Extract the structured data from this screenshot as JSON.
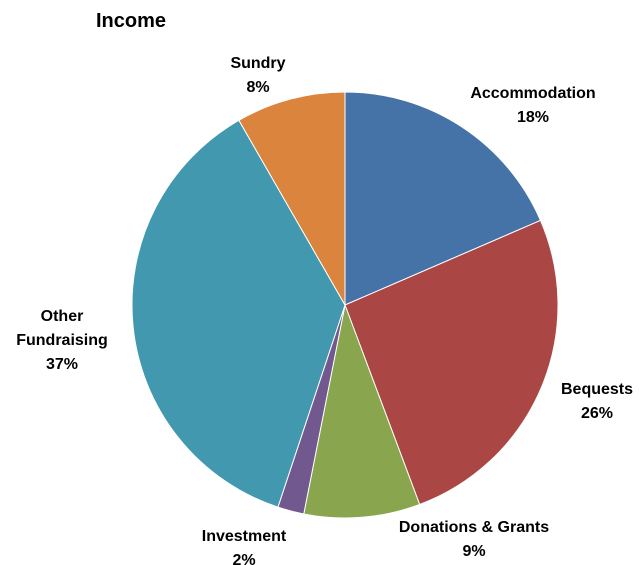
{
  "chart_data": {
    "type": "pie",
    "title": "Income",
    "start_angle_deg": 0,
    "direction": "clockwise",
    "slices": [
      {
        "name": "Accommodation",
        "label_lines": [
          "Accommodation"
        ],
        "pct_label": "18%",
        "value": 18.5,
        "color": "#4572A7"
      },
      {
        "name": "Bequests",
        "label_lines": [
          "Bequests"
        ],
        "pct_label": "26%",
        "value": 25.8,
        "color": "#AA4643"
      },
      {
        "name": "Donations & Grants",
        "label_lines": [
          "Donations & Grants"
        ],
        "pct_label": "9%",
        "value": 8.8,
        "color": "#89A54E"
      },
      {
        "name": "Investment",
        "label_lines": [
          "Investment"
        ],
        "pct_label": "2%",
        "value": 2.0,
        "color": "#71588F"
      },
      {
        "name": "Other Fundraising",
        "label_lines": [
          "Other",
          "Fundraising"
        ],
        "pct_label": "37%",
        "value": 36.6,
        "color": "#4198AF"
      },
      {
        "name": "Sundry",
        "label_lines": [
          "Sundry"
        ],
        "pct_label": "8%",
        "value": 8.3,
        "color": "#DB843D"
      }
    ]
  }
}
